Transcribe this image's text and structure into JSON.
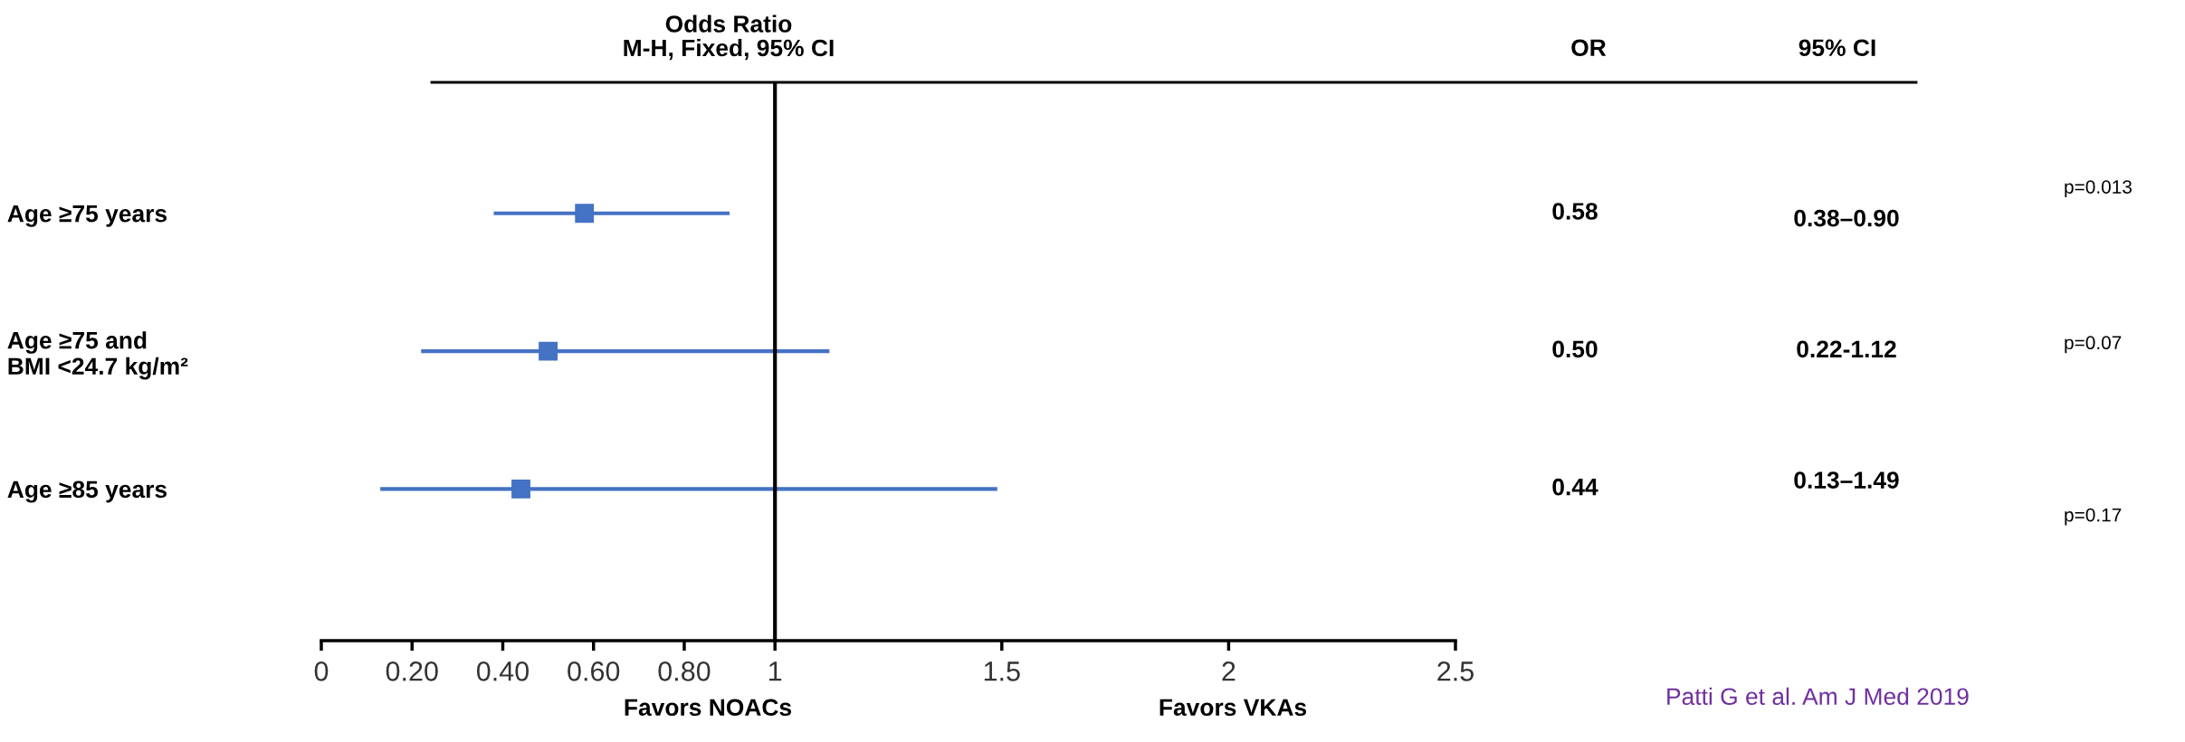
{
  "chart_data": {
    "type": "scatter",
    "title": "Odds Ratio\nM-H, Fixed, 95% CI",
    "orientation": "horizontal",
    "marker": "square",
    "color": "#4472c4",
    "categories": [
      "Age ≥75 years",
      "Age ≥75 and\nBMI <24.7 kg/m²",
      "Age ≥85 years"
    ],
    "values": [
      0.58,
      0.5,
      0.44
    ],
    "errors": [
      [
        0.38,
        0.9
      ],
      [
        0.22,
        1.12
      ],
      [
        0.13,
        1.49
      ]
    ],
    "value_labels": [
      "0.58",
      "0.50",
      "0.44"
    ],
    "xlim": [
      0,
      2.5
    ],
    "xticks": [
      0,
      {
        "value": 0.2,
        "label": "0.20"
      },
      {
        "value": 0.4,
        "label": "0.40"
      },
      {
        "value": 0.6,
        "label": "0.60"
      },
      {
        "value": 0.8,
        "label": "0.80"
      },
      1,
      1.5,
      2,
      2.5
    ],
    "ref_lines": [
      {
        "axis": "x",
        "value": 1,
        "color": "#000000"
      }
    ],
    "annotations": [
      "OR",
      "95% CI",
      "0.38–0.90",
      "0.22-1.12",
      "0.13–1.49",
      "p=0.013",
      "p=0.07",
      "p=0.17",
      "Favors NOACs",
      "Favors VKAs",
      "Patti G et al. Am J Med 2019"
    ]
  }
}
